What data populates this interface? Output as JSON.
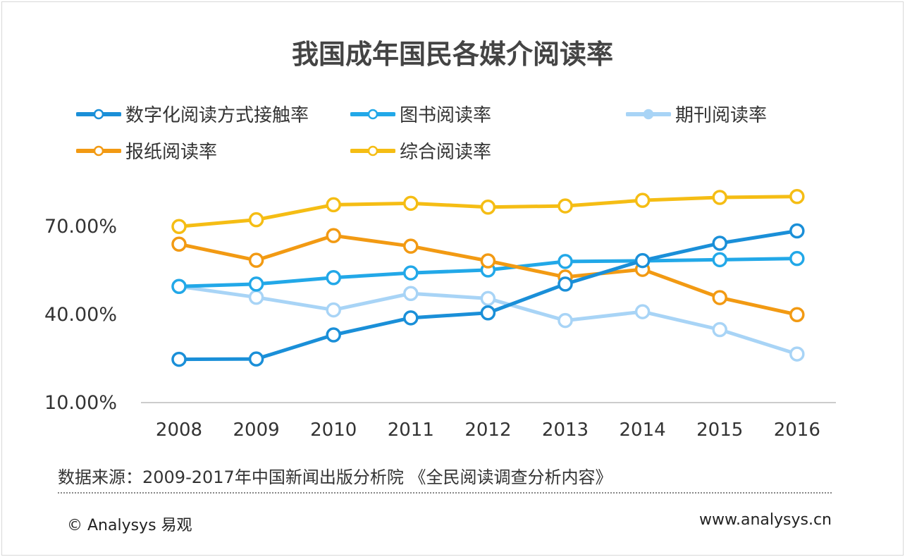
{
  "chart_data": {
    "type": "line",
    "title": "我国成年国民各媒介阅读率",
    "categories": [
      "2008",
      "2009",
      "2010",
      "2011",
      "2012",
      "2013",
      "2014",
      "2015",
      "2016"
    ],
    "yticks": [
      "10.00%",
      "40.00%",
      "70.00%"
    ],
    "ylim": [
      10,
      80
    ],
    "unit": "%",
    "legend_placement": "top",
    "grid": false,
    "series": [
      {
        "name": "数字化阅读方式接触率",
        "color": "#1a8fd8",
        "values": [
          24.5,
          24.6,
          32.8,
          38.6,
          40.3,
          50.1,
          58.1,
          64.0,
          68.2
        ]
      },
      {
        "name": "图书阅读率",
        "color": "#22a8e8",
        "values": [
          49.3,
          50.1,
          52.3,
          53.9,
          54.9,
          57.8,
          58.0,
          58.4,
          58.8
        ]
      },
      {
        "name": "期刊阅读率",
        "color": "#a8d4f6",
        "values": [
          49.3,
          45.6,
          41.3,
          46.9,
          45.2,
          37.7,
          40.7,
          34.6,
          26.3
        ]
      },
      {
        "name": "报纸阅读率",
        "color": "#f29a13",
        "values": [
          63.7,
          58.2,
          66.6,
          63.0,
          58.0,
          52.5,
          55.1,
          45.5,
          39.7
        ]
      },
      {
        "name": "综合阅读率",
        "color": "#f5bd14",
        "values": [
          69.7,
          72.0,
          77.1,
          77.6,
          76.3,
          76.7,
          78.6,
          79.6,
          79.9
        ]
      }
    ]
  },
  "footer": {
    "source": "数据来源：2009-2017年中国新闻出版分析院 《全民阅读调查分析内容》",
    "copyright": "© Analysys 易观",
    "url": "www.analysys.cn"
  }
}
